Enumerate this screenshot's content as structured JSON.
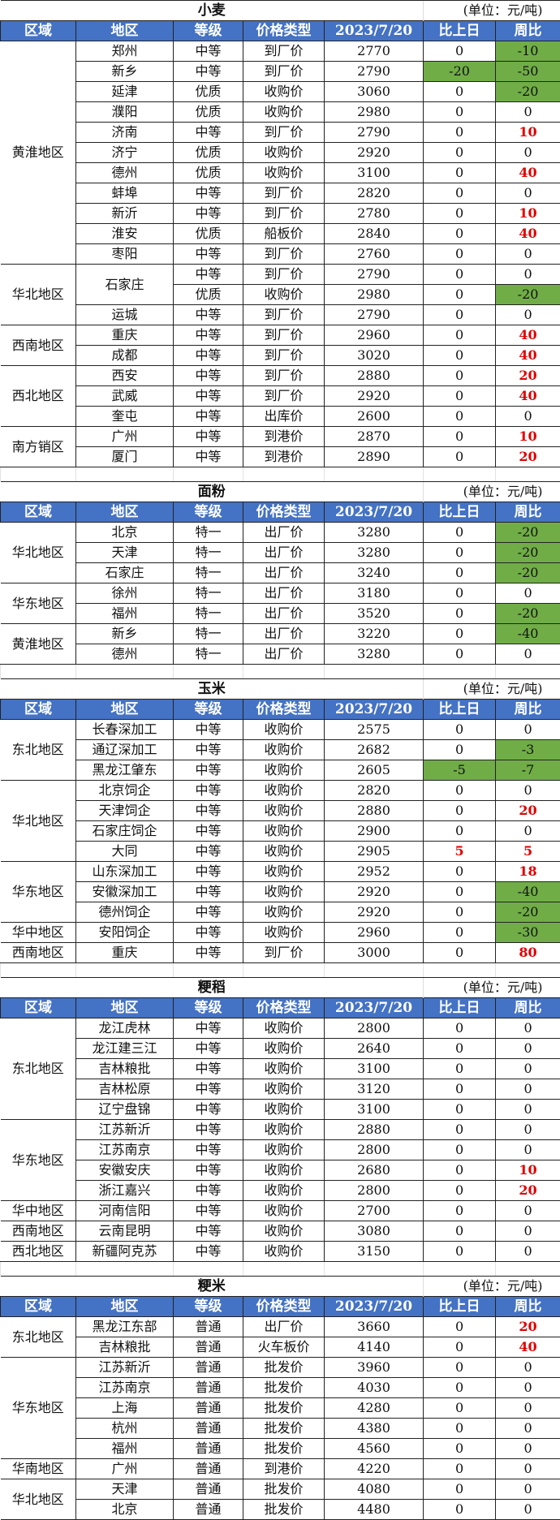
{
  "headers": [
    "区域",
    "地区",
    "等级",
    "价格类型",
    "2023/7/20",
    "比上日",
    "周比"
  ],
  "colors": {
    "header_bg": "#4472C4",
    "decrease_fill": "#70AD47",
    "increase_text": "#E00000"
  },
  "sections": [
    {
      "title": "小麦",
      "unit": "(单位：元/吨)",
      "groups": [
        {
          "region": "黄淮地区",
          "rows": [
            {
              "area": "郑州",
              "grade": "中等",
              "price_type": "到厂价",
              "price": "2770",
              "day": "0",
              "week": "-10"
            },
            {
              "area": "新乡",
              "grade": "中等",
              "price_type": "到厂价",
              "price": "2790",
              "day": "-20",
              "week": "-50"
            },
            {
              "area": "延津",
              "grade": "优质",
              "price_type": "收购价",
              "price": "3060",
              "day": "0",
              "week": "-20"
            },
            {
              "area": "濮阳",
              "grade": "优质",
              "price_type": "收购价",
              "price": "2980",
              "day": "0",
              "week": "0"
            },
            {
              "area": "济南",
              "grade": "中等",
              "price_type": "到厂价",
              "price": "2790",
              "day": "0",
              "week": "10"
            },
            {
              "area": "济宁",
              "grade": "优质",
              "price_type": "收购价",
              "price": "2920",
              "day": "0",
              "week": "0"
            },
            {
              "area": "德州",
              "grade": "优质",
              "price_type": "收购价",
              "price": "3100",
              "day": "0",
              "week": "40"
            },
            {
              "area": "蚌埠",
              "grade": "中等",
              "price_type": "到厂价",
              "price": "2820",
              "day": "0",
              "week": "0"
            },
            {
              "area": "新沂",
              "grade": "中等",
              "price_type": "到厂价",
              "price": "2780",
              "day": "0",
              "week": "10"
            },
            {
              "area": "淮安",
              "grade": "优质",
              "price_type": "船板价",
              "price": "2840",
              "day": "0",
              "week": "40"
            },
            {
              "area": "枣阳",
              "grade": "中等",
              "price_type": "到厂价",
              "price": "2760",
              "day": "0",
              "week": "0"
            }
          ]
        },
        {
          "region": "华北地区",
          "rows": [
            {
              "area": "石家庄",
              "area_span": 2,
              "grade": "中等",
              "price_type": "到厂价",
              "price": "2790",
              "day": "0",
              "week": "0"
            },
            {
              "grade": "优质",
              "price_type": "收购价",
              "price": "2980",
              "day": "0",
              "week": "-20"
            },
            {
              "area": "运城",
              "grade": "中等",
              "price_type": "到厂价",
              "price": "2790",
              "day": "0",
              "week": "0"
            }
          ]
        },
        {
          "region": "西南地区",
          "rows": [
            {
              "area": "重庆",
              "grade": "中等",
              "price_type": "到厂价",
              "price": "2960",
              "day": "0",
              "week": "40"
            },
            {
              "area": "成都",
              "grade": "中等",
              "price_type": "到厂价",
              "price": "3020",
              "day": "0",
              "week": "40"
            }
          ]
        },
        {
          "region": "西北地区",
          "rows": [
            {
              "area": "西安",
              "grade": "中等",
              "price_type": "到厂价",
              "price": "2880",
              "day": "0",
              "week": "20"
            },
            {
              "area": "武威",
              "grade": "中等",
              "price_type": "到厂价",
              "price": "2920",
              "day": "0",
              "week": "40"
            },
            {
              "area": "奎屯",
              "grade": "中等",
              "price_type": "出库价",
              "price": "2600",
              "day": "0",
              "week": "0"
            }
          ]
        },
        {
          "region": "南方销区",
          "rows": [
            {
              "area": "广州",
              "grade": "中等",
              "price_type": "到港价",
              "price": "2870",
              "day": "0",
              "week": "10"
            },
            {
              "area": "厦门",
              "grade": "中等",
              "price_type": "到港价",
              "price": "2890",
              "day": "0",
              "week": "20"
            }
          ]
        }
      ]
    },
    {
      "title": "面粉",
      "unit": "(单位：元/吨)",
      "groups": [
        {
          "region": "华北地区",
          "rows": [
            {
              "area": "北京",
              "grade": "特一",
              "price_type": "出厂价",
              "price": "3280",
              "day": "0",
              "week": "-20"
            },
            {
              "area": "天津",
              "grade": "特一",
              "price_type": "出厂价",
              "price": "3280",
              "day": "0",
              "week": "-20"
            },
            {
              "area": "石家庄",
              "grade": "特一",
              "price_type": "出厂价",
              "price": "3240",
              "day": "0",
              "week": "-20"
            }
          ]
        },
        {
          "region": "华东地区",
          "rows": [
            {
              "area": "徐州",
              "grade": "特一",
              "price_type": "出厂价",
              "price": "3180",
              "day": "0",
              "week": "0"
            },
            {
              "area": "福州",
              "grade": "特一",
              "price_type": "出厂价",
              "price": "3520",
              "day": "0",
              "week": "-20"
            }
          ]
        },
        {
          "region": "黄淮地区",
          "rows": [
            {
              "area": "新乡",
              "grade": "特一",
              "price_type": "出厂价",
              "price": "3220",
              "day": "0",
              "week": "-40"
            },
            {
              "area": "德州",
              "grade": "特一",
              "price_type": "出厂价",
              "price": "3280",
              "day": "0",
              "week": "0"
            }
          ]
        }
      ]
    },
    {
      "title": "玉米",
      "unit": "(单位：元/吨)",
      "groups": [
        {
          "region": "东北地区",
          "rows": [
            {
              "area": "长春深加工",
              "grade": "中等",
              "price_type": "收购价",
              "price": "2575",
              "day": "0",
              "week": "0"
            },
            {
              "area": "通辽深加工",
              "grade": "中等",
              "price_type": "收购价",
              "price": "2682",
              "day": "0",
              "week": "-3"
            },
            {
              "area": "黑龙江肇东",
              "grade": "中等",
              "price_type": "收购价",
              "price": "2605",
              "day": "-5",
              "week": "-7"
            }
          ]
        },
        {
          "region": "华北地区",
          "rows": [
            {
              "area": "北京饲企",
              "grade": "中等",
              "price_type": "收购价",
              "price": "2820",
              "day": "0",
              "week": "0"
            },
            {
              "area": "天津饲企",
              "grade": "中等",
              "price_type": "收购价",
              "price": "2880",
              "day": "0",
              "week": "20"
            },
            {
              "area": "石家庄饲企",
              "grade": "中等",
              "price_type": "收购价",
              "price": "2900",
              "day": "0",
              "week": "0"
            },
            {
              "area": "大同",
              "grade": "中等",
              "price_type": "收购价",
              "price": "2905",
              "day": "5",
              "week": "5"
            }
          ]
        },
        {
          "region": "华东地区",
          "rows": [
            {
              "area": "山东深加工",
              "grade": "中等",
              "price_type": "收购价",
              "price": "2952",
              "day": "0",
              "week": "18"
            },
            {
              "area": "安徽深加工",
              "grade": "中等",
              "price_type": "收购价",
              "price": "2920",
              "day": "0",
              "week": "-40"
            },
            {
              "area": "德州饲企",
              "grade": "中等",
              "price_type": "收购价",
              "price": "2920",
              "day": "0",
              "week": "-20"
            }
          ]
        },
        {
          "region": "华中地区",
          "rows": [
            {
              "area": "安阳饲企",
              "grade": "中等",
              "price_type": "收购价",
              "price": "2960",
              "day": "0",
              "week": "-30"
            }
          ]
        },
        {
          "region": "西南地区",
          "rows": [
            {
              "area": "重庆",
              "grade": "中等",
              "price_type": "到厂价",
              "price": "3000",
              "day": "0",
              "week": "80"
            }
          ]
        }
      ]
    },
    {
      "title": "粳稻",
      "unit": "(单位：元/吨)",
      "groups": [
        {
          "region": "东北地区",
          "rows": [
            {
              "area": "龙江虎林",
              "grade": "中等",
              "price_type": "收购价",
              "price": "2800",
              "day": "0",
              "week": "0"
            },
            {
              "area": "龙江建三江",
              "grade": "中等",
              "price_type": "收购价",
              "price": "2640",
              "day": "0",
              "week": "0"
            },
            {
              "area": "吉林粮批",
              "grade": "中等",
              "price_type": "收购价",
              "price": "3100",
              "day": "0",
              "week": "0"
            },
            {
              "area": "吉林松原",
              "grade": "中等",
              "price_type": "收购价",
              "price": "3120",
              "day": "0",
              "week": "0"
            },
            {
              "area": "辽宁盘锦",
              "grade": "中等",
              "price_type": "收购价",
              "price": "3100",
              "day": "0",
              "week": "0"
            }
          ]
        },
        {
          "region": "华东地区",
          "rows": [
            {
              "area": "江苏新沂",
              "grade": "中等",
              "price_type": "收购价",
              "price": "2880",
              "day": "0",
              "week": "0"
            },
            {
              "area": "江苏南京",
              "grade": "中等",
              "price_type": "收购价",
              "price": "2800",
              "day": "0",
              "week": "0"
            },
            {
              "area": "安徽安庆",
              "grade": "中等",
              "price_type": "收购价",
              "price": "2680",
              "day": "0",
              "week": "10"
            },
            {
              "area": "浙江嘉兴",
              "grade": "中等",
              "price_type": "收购价",
              "price": "2800",
              "day": "0",
              "week": "20"
            }
          ]
        },
        {
          "region": "华中地区",
          "rows": [
            {
              "area": "河南信阳",
              "grade": "中等",
              "price_type": "收购价",
              "price": "2700",
              "day": "0",
              "week": "0"
            }
          ]
        },
        {
          "region": "西南地区",
          "rows": [
            {
              "area": "云南昆明",
              "grade": "中等",
              "price_type": "收购价",
              "price": "3080",
              "day": "0",
              "week": "0"
            }
          ]
        },
        {
          "region": "西北地区",
          "rows": [
            {
              "area": "新疆阿克苏",
              "grade": "中等",
              "price_type": "收购价",
              "price": "3150",
              "day": "0",
              "week": "0"
            }
          ]
        }
      ]
    },
    {
      "title": "粳米",
      "unit": "(单位：元/吨)",
      "groups": [
        {
          "region": "东北地区",
          "rows": [
            {
              "area": "黑龙江东部",
              "grade": "普通",
              "price_type": "出厂价",
              "price": "3660",
              "day": "0",
              "week": "20"
            },
            {
              "area": "吉林粮批",
              "grade": "普通",
              "price_type": "火车板价",
              "price": "4140",
              "day": "0",
              "week": "40"
            }
          ]
        },
        {
          "region": "华东地区",
          "rows": [
            {
              "area": "江苏新沂",
              "grade": "普通",
              "price_type": "批发价",
              "price": "3960",
              "day": "0",
              "week": "0"
            },
            {
              "area": "江苏南京",
              "grade": "普通",
              "price_type": "批发价",
              "price": "4030",
              "day": "0",
              "week": "0"
            },
            {
              "area": "上海",
              "grade": "普通",
              "price_type": "批发价",
              "price": "4280",
              "day": "0",
              "week": "0"
            },
            {
              "area": "杭州",
              "grade": "普通",
              "price_type": "批发价",
              "price": "4380",
              "day": "0",
              "week": "0"
            },
            {
              "area": "福州",
              "grade": "普通",
              "price_type": "批发价",
              "price": "4560",
              "day": "0",
              "week": "0"
            }
          ]
        },
        {
          "region": "华南地区",
          "rows": [
            {
              "area": "广州",
              "grade": "普通",
              "price_type": "到港价",
              "price": "4220",
              "day": "0",
              "week": "0"
            }
          ]
        },
        {
          "region": "华北地区",
          "rows": [
            {
              "area": "天津",
              "grade": "普通",
              "price_type": "批发价",
              "price": "4080",
              "day": "0",
              "week": "0"
            },
            {
              "area": "北京",
              "grade": "普通",
              "price_type": "批发价",
              "price": "4480",
              "day": "0",
              "week": "0"
            }
          ]
        }
      ]
    }
  ]
}
